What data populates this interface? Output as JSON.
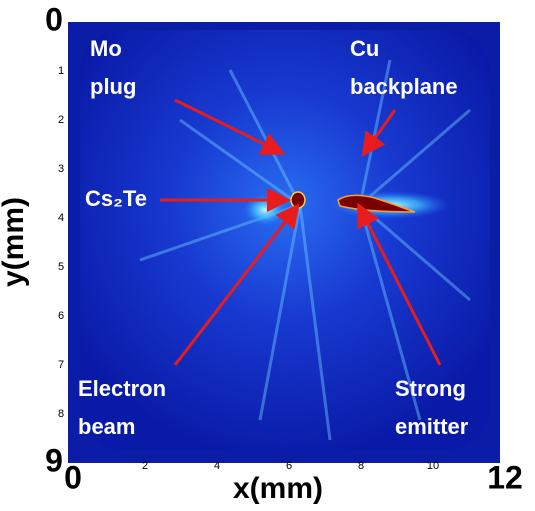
{
  "chart_data": {
    "type": "image",
    "x_label": "x(mm)",
    "y_label": "y(mm)",
    "xlim": [
      0,
      12
    ],
    "ylim": [
      0,
      9
    ],
    "y_inverted": true,
    "xticks": [
      0,
      2,
      4,
      6,
      8,
      10,
      12
    ],
    "yticks": [
      0,
      1,
      2,
      3,
      4,
      5,
      6,
      7,
      8,
      9
    ],
    "annotations": [
      {
        "lines": [
          "Mo",
          "plug"
        ]
      },
      {
        "lines": [
          "Cu",
          "backplane"
        ]
      },
      {
        "lines": [
          "Cs₂Te"
        ]
      },
      {
        "lines": [
          "Electron",
          "beam"
        ]
      },
      {
        "lines": [
          "Strong",
          "emitter"
        ]
      }
    ]
  }
}
